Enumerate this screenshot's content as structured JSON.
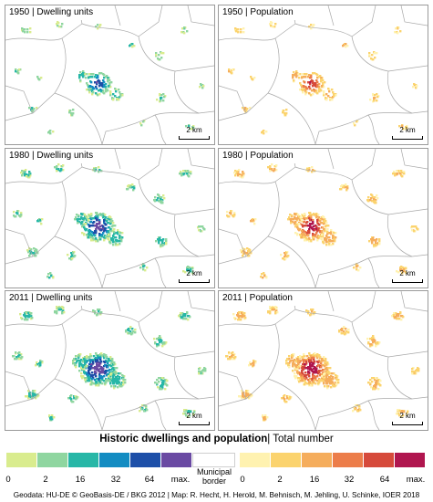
{
  "panels": [
    {
      "id": "p1950d",
      "year": "1950",
      "label": "1950 | Dwelling units",
      "type": "dwellings",
      "intensity": 0.45,
      "scale": "2 km"
    },
    {
      "id": "p1950p",
      "year": "1950",
      "label": "1950 | Population",
      "type": "population",
      "intensity": 0.45,
      "scale": "2 km"
    },
    {
      "id": "p1980d",
      "year": "1980",
      "label": "1980 | Dwelling units",
      "type": "dwellings",
      "intensity": 0.8,
      "scale": "2 km"
    },
    {
      "id": "p1980p",
      "year": "1980",
      "label": "1980 | Population",
      "type": "population",
      "intensity": 0.8,
      "scale": "2 km"
    },
    {
      "id": "p2011d",
      "year": "2011",
      "label": "2011 | Dwelling units",
      "type": "dwellings",
      "intensity": 1.0,
      "scale": "2 km"
    },
    {
      "id": "p2011p",
      "year": "2011",
      "label": "2011 | Population",
      "type": "population",
      "intensity": 1.0,
      "scale": "2 km"
    }
  ],
  "title": {
    "bold": "Historic dwellings and population",
    "rest": "| Total number"
  },
  "legend": {
    "dwellings": {
      "colors": [
        "#d9ec8e",
        "#8fd6a0",
        "#27b7a7",
        "#138cc2",
        "#1d4fa8",
        "#6a4aa3"
      ]
    },
    "population": {
      "colors": [
        "#fff2b0",
        "#fbd36e",
        "#f5ad5c",
        "#ec7d4a",
        "#d64a3b",
        "#b0164f"
      ]
    },
    "dwellings_ticks": [
      "0",
      "2",
      "16",
      "32",
      "64",
      "max."
    ],
    "population_ticks": [
      "0",
      "2",
      "16",
      "32",
      "64",
      "max."
    ],
    "municipal_border": "Municipal border"
  },
  "credits": "Geodata: HU-DE © GeoBasis-DE / BKG 2012 | Map: R. Hecht, H. Herold, M. Behnisch, M. Jehling, U. Schinke, IOER 2018"
}
